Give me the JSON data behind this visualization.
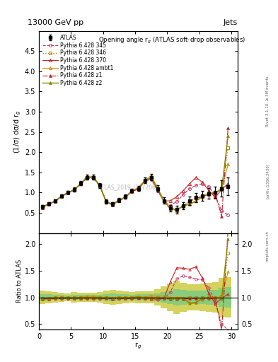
{
  "title_top": "13000 GeV pp",
  "title_right": "Jets",
  "plot_title": "Opening angle r$_g$ (ATLAS soft-drop observables)",
  "xlabel": "r$_g$",
  "ylabel_main": "(1/σ) dσ/d r$_g$",
  "ylabel_ratio": "Ratio to ATLAS",
  "watermark": "ATLAS_2019_I1772062",
  "xlim": [
    0,
    31
  ],
  "ylim_main": [
    0,
    5
  ],
  "ylim_ratio": [
    0.4,
    2.2
  ],
  "x": [
    0.5,
    1.5,
    2.5,
    3.5,
    4.5,
    5.5,
    6.5,
    7.5,
    8.5,
    9.5,
    10.5,
    11.5,
    12.5,
    13.5,
    14.5,
    15.5,
    16.5,
    17.5,
    18.5,
    19.5,
    20.5,
    21.5,
    22.5,
    23.5,
    24.5,
    25.5,
    26.5,
    27.5,
    28.5,
    29.5
  ],
  "atlas_y": [
    0.65,
    0.73,
    0.8,
    0.92,
    1.01,
    1.08,
    1.23,
    1.38,
    1.38,
    1.18,
    0.78,
    0.72,
    0.82,
    0.9,
    1.05,
    1.1,
    1.3,
    1.38,
    1.1,
    0.8,
    0.62,
    0.58,
    0.68,
    0.8,
    0.88,
    0.92,
    0.98,
    1.0,
    1.1,
    1.15
  ],
  "atlas_yerr": [
    0.04,
    0.04,
    0.04,
    0.04,
    0.04,
    0.05,
    0.05,
    0.06,
    0.06,
    0.06,
    0.05,
    0.05,
    0.05,
    0.05,
    0.05,
    0.06,
    0.07,
    0.08,
    0.08,
    0.08,
    0.08,
    0.09,
    0.09,
    0.1,
    0.11,
    0.12,
    0.13,
    0.14,
    0.2,
    0.22
  ],
  "py345_y": [
    0.63,
    0.71,
    0.78,
    0.9,
    0.99,
    1.06,
    1.21,
    1.36,
    1.36,
    1.16,
    0.76,
    0.7,
    0.8,
    0.88,
    1.03,
    1.08,
    1.28,
    1.33,
    1.05,
    0.78,
    0.68,
    0.78,
    0.95,
    1.1,
    1.18,
    1.22,
    1.15,
    0.9,
    0.55,
    0.45
  ],
  "py346_y": [
    0.64,
    0.72,
    0.79,
    0.91,
    1.0,
    1.07,
    1.22,
    1.37,
    1.37,
    1.17,
    0.77,
    0.71,
    0.81,
    0.89,
    1.04,
    1.09,
    1.29,
    1.34,
    1.09,
    0.79,
    0.61,
    0.57,
    0.67,
    0.79,
    0.87,
    0.91,
    0.97,
    0.99,
    1.12,
    2.1
  ],
  "py370_y": [
    0.64,
    0.72,
    0.79,
    0.91,
    1.0,
    1.07,
    1.22,
    1.37,
    1.37,
    1.17,
    0.77,
    0.71,
    0.81,
    0.89,
    1.04,
    1.09,
    1.29,
    1.37,
    1.09,
    0.79,
    0.8,
    0.9,
    1.05,
    1.22,
    1.38,
    1.25,
    1.05,
    0.88,
    1.08,
    1.22
  ],
  "pyambt1_y": [
    0.64,
    0.72,
    0.79,
    0.91,
    1.0,
    1.07,
    1.22,
    1.41,
    1.4,
    1.18,
    0.78,
    0.72,
    0.82,
    0.9,
    1.05,
    1.12,
    1.3,
    1.42,
    1.12,
    0.82,
    0.62,
    0.58,
    0.68,
    0.72,
    0.8,
    0.88,
    0.98,
    1.0,
    1.1,
    1.7
  ],
  "pyz1_y": [
    0.63,
    0.71,
    0.78,
    0.9,
    0.99,
    1.06,
    1.21,
    1.36,
    1.36,
    1.16,
    0.76,
    0.7,
    0.8,
    0.88,
    1.03,
    1.1,
    1.28,
    1.36,
    1.08,
    0.78,
    0.6,
    0.56,
    0.66,
    0.78,
    0.86,
    0.9,
    0.96,
    0.98,
    0.42,
    2.6
  ],
  "pyz2_y": [
    0.64,
    0.72,
    0.79,
    0.91,
    1.0,
    1.07,
    1.22,
    1.37,
    1.37,
    1.17,
    0.77,
    0.71,
    0.81,
    0.89,
    1.04,
    1.11,
    1.29,
    1.37,
    1.09,
    0.79,
    0.61,
    0.57,
    0.67,
    0.71,
    0.79,
    0.91,
    0.97,
    0.99,
    1.08,
    2.4
  ],
  "colors": {
    "atlas": "#000000",
    "py345": "#cc3366",
    "py346": "#aa8800",
    "py370": "#cc2222",
    "pyambt1": "#dd8800",
    "pyz1": "#bb2222",
    "pyz2": "#888800"
  },
  "band_green": "#80cc80",
  "band_yellow": "#cccc40",
  "yticks_main": [
    0.5,
    1.0,
    1.5,
    2.0,
    2.5,
    3.0,
    3.5,
    4.0,
    4.5
  ],
  "yticks_ratio": [
    0.5,
    1.0,
    1.5,
    2.0
  ],
  "xticks": [
    0,
    5,
    10,
    15,
    20,
    25,
    30
  ]
}
